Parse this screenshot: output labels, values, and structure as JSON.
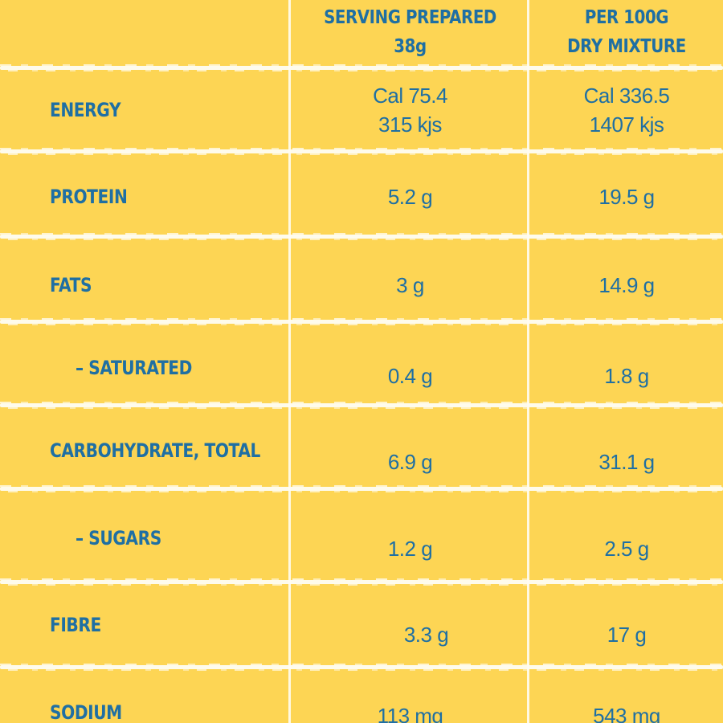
{
  "header": {
    "serving_line1": "SERVING PREPARED",
    "serving_line2": "38g",
    "per100_line1": "PER 100G",
    "per100_line2": "DRY MIXTURE"
  },
  "rows": [
    {
      "label": "ENERGY",
      "serving": [
        "Cal 75.4",
        "315 kjs"
      ],
      "per100": [
        "Cal 336.5",
        "1407 kjs"
      ]
    },
    {
      "label": "PROTEIN",
      "serving": [
        "5.2 g"
      ],
      "per100": [
        "19.5 g"
      ]
    },
    {
      "label": "FATS",
      "serving": [
        "3 g"
      ],
      "per100": [
        "14.9 g"
      ]
    },
    {
      "label": "– SATURATED",
      "serving": [
        "0.4 g"
      ],
      "per100": [
        "1.8 g"
      ]
    },
    {
      "label": "CARBOHYDRATE, TOTAL",
      "serving": [
        "6.9 g"
      ],
      "per100": [
        "31.1 g"
      ]
    },
    {
      "label": "– SUGARS",
      "serving": [
        "1.2 g"
      ],
      "per100": [
        "2.5 g"
      ]
    },
    {
      "label": "FIBRE",
      "serving": [
        "3.3 g"
      ],
      "per100": [
        "17 g"
      ]
    },
    {
      "label": "SODIUM",
      "serving": [
        "113 mg"
      ],
      "per100": [
        "543 mg"
      ]
    }
  ],
  "colors": {
    "background": "#fdd554",
    "text": "#1f6fa3",
    "lines": "#fffdf3"
  }
}
